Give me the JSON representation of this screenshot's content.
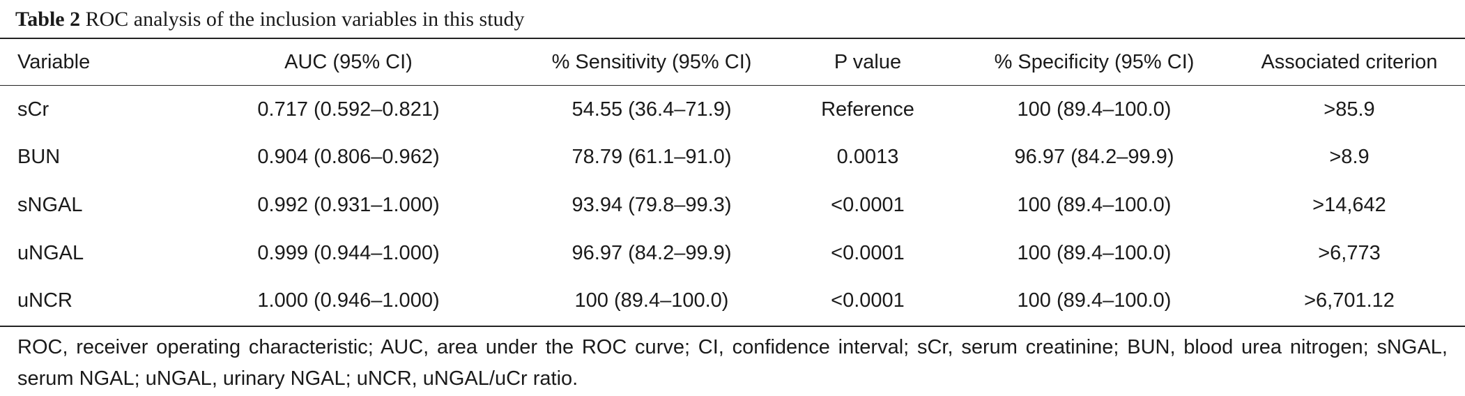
{
  "caption": {
    "label": "Table 2",
    "text": "ROC analysis of the inclusion variables in this study"
  },
  "table": {
    "headers": [
      "Variable",
      "AUC (95% CI)",
      "% Sensitivity (95% CI)",
      "P value",
      "% Specificity (95% CI)",
      "Associated criterion"
    ],
    "rows": [
      [
        "sCr",
        "0.717 (0.592–0.821)",
        "54.55 (36.4–71.9)",
        "Reference",
        "100 (89.4–100.0)",
        ">85.9"
      ],
      [
        "BUN",
        "0.904 (0.806–0.962)",
        "78.79 (61.1–91.0)",
        "0.0013",
        "96.97 (84.2–99.9)",
        ">8.9"
      ],
      [
        "sNGAL",
        "0.992 (0.931–1.000)",
        "93.94 (79.8–99.3)",
        "<0.0001",
        "100 (89.4–100.0)",
        ">14,642"
      ],
      [
        "uNGAL",
        "0.999 (0.944–1.000)",
        "96.97 (84.2–99.9)",
        "<0.0001",
        "100 (89.4–100.0)",
        ">6,773"
      ],
      [
        "uNCR",
        "1.000 (0.946–1.000)",
        "100 (89.4–100.0)",
        "<0.0001",
        "100 (89.4–100.0)",
        ">6,701.12"
      ]
    ]
  },
  "footnote": "ROC, receiver operating characteristic; AUC, area under the ROC curve; CI, confidence interval; sCr, serum creatinine; BUN, blood urea nitrogen; sNGAL, serum NGAL; uNGAL, urinary NGAL; uNCR, uNGAL/uCr ratio."
}
